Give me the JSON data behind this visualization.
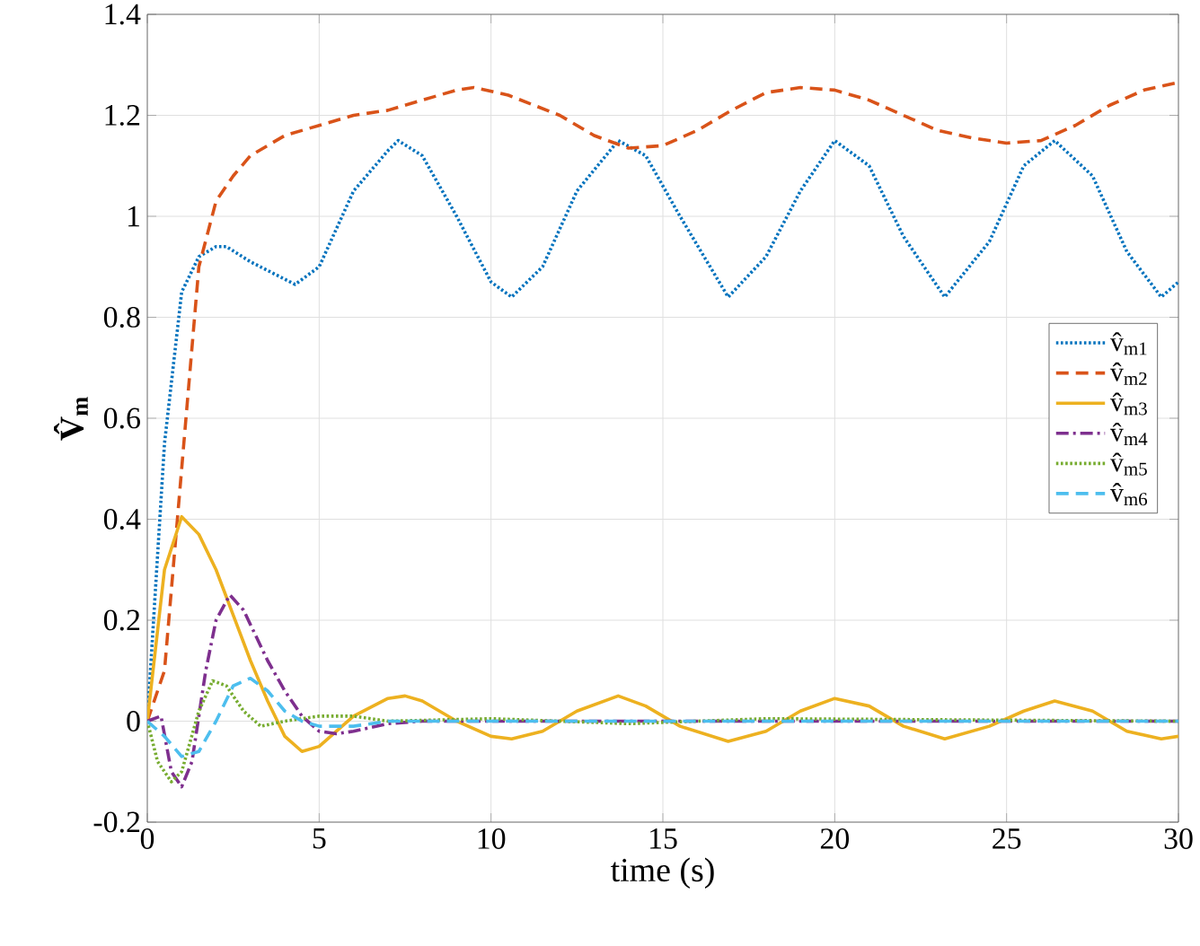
{
  "chart_data": {
    "type": "line",
    "xlabel": "time (s)",
    "ylabel": "V̂$_{m}$",
    "xlim": [
      0,
      30
    ],
    "ylim": [
      -0.2,
      1.4
    ],
    "xticks": [
      0,
      5,
      10,
      15,
      20,
      25,
      30
    ],
    "yticks": [
      -0.2,
      0,
      0.2,
      0.4,
      0.6,
      0.8,
      1,
      1.2,
      1.4
    ],
    "grid": true,
    "legend": "right",
    "series": [
      {
        "name": "v̂$_{m1}$",
        "color": "#0072bd",
        "line_style": "dotted",
        "x": [
          0,
          0.5,
          1,
          1.5,
          2,
          2.3,
          3,
          4.3,
          5,
          6,
          7,
          7.3,
          8,
          9,
          10,
          10.6,
          11.5,
          12.5,
          13.7,
          14.5,
          15.5,
          16.9,
          18,
          19,
          20,
          21,
          22,
          23.2,
          24.5,
          25.5,
          26.4,
          27.5,
          28.5,
          29.5,
          30
        ],
        "values": [
          0,
          0.55,
          0.85,
          0.92,
          0.94,
          0.94,
          0.91,
          0.865,
          0.9,
          1.05,
          1.13,
          1.15,
          1.12,
          1.0,
          0.87,
          0.84,
          0.9,
          1.05,
          1.15,
          1.12,
          1.0,
          0.84,
          0.92,
          1.05,
          1.15,
          1.1,
          0.96,
          0.84,
          0.95,
          1.1,
          1.15,
          1.08,
          0.93,
          0.84,
          0.87
        ]
      },
      {
        "name": "v̂$_{m2}$",
        "color": "#d95319",
        "line_style": "dashed",
        "x": [
          0,
          0.5,
          1,
          1.5,
          2,
          2.5,
          3,
          4,
          5,
          6,
          7,
          8,
          9,
          9.5,
          10.5,
          12,
          13,
          14,
          15,
          16,
          17,
          18,
          19,
          20,
          21,
          22,
          23,
          24,
          25,
          26,
          27,
          28,
          29,
          30
        ],
        "values": [
          0,
          0.1,
          0.5,
          0.9,
          1.03,
          1.08,
          1.12,
          1.16,
          1.18,
          1.2,
          1.21,
          1.23,
          1.25,
          1.255,
          1.24,
          1.2,
          1.16,
          1.135,
          1.14,
          1.17,
          1.21,
          1.245,
          1.255,
          1.25,
          1.23,
          1.2,
          1.17,
          1.155,
          1.145,
          1.15,
          1.18,
          1.22,
          1.25,
          1.265
        ]
      },
      {
        "name": "v̂$_{m3}$",
        "color": "#edb120",
        "line_style": "solid",
        "x": [
          0,
          0.5,
          1,
          1.5,
          2,
          2.5,
          3,
          3.5,
          4,
          4.5,
          5,
          5.5,
          6,
          7,
          7.5,
          8,
          9,
          10,
          10.6,
          11.5,
          12.5,
          13.7,
          14.5,
          15.5,
          16.9,
          18,
          19,
          20,
          21,
          22,
          23.2,
          24.5,
          25.5,
          26.4,
          27.5,
          28.5,
          29.5,
          30
        ],
        "values": [
          0,
          0.3,
          0.405,
          0.37,
          0.3,
          0.21,
          0.12,
          0.04,
          -0.03,
          -0.06,
          -0.05,
          -0.02,
          0.01,
          0.045,
          0.05,
          0.04,
          0.0,
          -0.03,
          -0.035,
          -0.02,
          0.02,
          0.05,
          0.03,
          -0.01,
          -0.04,
          -0.02,
          0.02,
          0.045,
          0.03,
          -0.01,
          -0.035,
          -0.01,
          0.02,
          0.04,
          0.02,
          -0.02,
          -0.035,
          -0.03
        ]
      },
      {
        "name": "v̂$_{m4}$",
        "color": "#7e2f8e",
        "line_style": "dashdot",
        "x": [
          0,
          0.4,
          0.7,
          1,
          1.3,
          1.7,
          2,
          2.4,
          2.8,
          3.5,
          4,
          4.5,
          5,
          5.5,
          6,
          7,
          8,
          12,
          20,
          30
        ],
        "values": [
          0,
          0.01,
          -0.1,
          -0.13,
          -0.08,
          0.1,
          0.2,
          0.25,
          0.22,
          0.12,
          0.06,
          0.01,
          -0.02,
          -0.025,
          -0.02,
          -0.005,
          0,
          0,
          0,
          0
        ]
      },
      {
        "name": "v̂$_{m5}$",
        "color": "#77ac30",
        "line_style": "dotted",
        "x": [
          0,
          0.3,
          0.7,
          1,
          1.5,
          1.9,
          2.3,
          2.8,
          3.3,
          4,
          5,
          6,
          7,
          10,
          14,
          18,
          30
        ],
        "values": [
          0,
          -0.08,
          -0.12,
          -0.1,
          0.02,
          0.08,
          0.07,
          0.02,
          -0.01,
          0,
          0.01,
          0.01,
          0,
          0.005,
          -0.005,
          0.005,
          0
        ]
      },
      {
        "name": "v̂$_{m6}$",
        "color": "#4dbeee",
        "line_style": "dashed",
        "x": [
          0,
          0.5,
          1,
          1.5,
          2,
          2.5,
          3,
          3.5,
          4,
          4.5,
          5,
          6,
          7,
          30
        ],
        "values": [
          0,
          -0.03,
          -0.07,
          -0.06,
          0,
          0.07,
          0.085,
          0.06,
          0.02,
          0,
          -0.01,
          -0.01,
          0,
          0
        ]
      }
    ]
  }
}
